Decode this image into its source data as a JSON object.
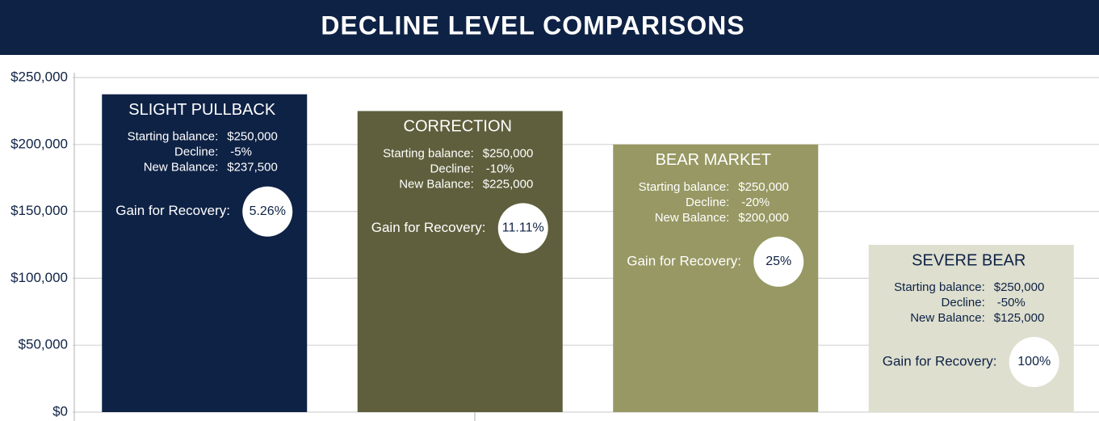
{
  "chart_data": {
    "type": "bar",
    "title": "DECLINE LEVEL COMPARISONS",
    "categories": [
      "SLIGHT PULLBACK",
      "CORRECTION",
      "BEAR MARKET",
      "SEVERE BEAR"
    ],
    "values": [
      237500,
      225000,
      200000,
      125000
    ],
    "value_labels": [
      "$237,500",
      "$225,000",
      "$200,000",
      "$125,000"
    ],
    "colors": [
      "#0e2245",
      "#5f5f3d",
      "#979863",
      "#dedfcf"
    ],
    "text_colors": [
      "#ffffff",
      "#ffffff",
      "#ffffff",
      "#0e2245"
    ],
    "labels": {
      "starting": "Starting balance:",
      "decline": "Decline:",
      "new": "New Balance:",
      "gain": "Gain for Recovery:"
    },
    "starting_balances": [
      250000,
      250000,
      250000,
      250000
    ],
    "starting_balance_labels": [
      "$250,000",
      "$250,000",
      "$250,000",
      "$250,000"
    ],
    "declines": [
      -5,
      -10,
      -20,
      -50
    ],
    "decline_labels": [
      "-5%",
      "-10%",
      "-20%",
      "-50%"
    ],
    "gains": [
      5.26,
      11.11,
      25,
      100
    ],
    "gain_labels": [
      "5.26%",
      "11.11%",
      "25%",
      "100%"
    ],
    "ylim": [
      0,
      250000
    ],
    "yticks": [
      {
        "value": 0,
        "label": "$0"
      },
      {
        "value": 50000,
        "label": "$50,000"
      },
      {
        "value": 100000,
        "label": "$100,000"
      },
      {
        "value": 150000,
        "label": "$150,000"
      },
      {
        "value": 200000,
        "label": "$200,000"
      },
      {
        "value": 250000,
        "label": "$250,000"
      }
    ],
    "grid": true
  }
}
